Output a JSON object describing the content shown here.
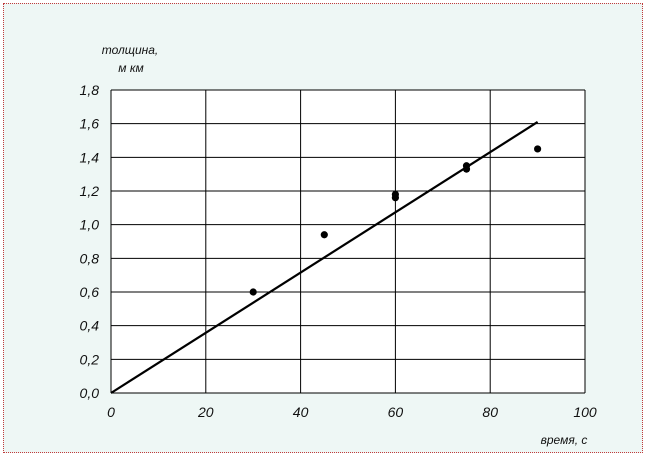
{
  "chart_data": {
    "type": "scatter",
    "title": "",
    "ylabel_line1": "толщина,",
    "ylabel_line2": "м км",
    "xlabel": "время, с",
    "xlim": [
      0,
      100
    ],
    "ylim": [
      0.0,
      1.8
    ],
    "x_ticks": [
      "0",
      "20",
      "40",
      "60",
      "80",
      "100"
    ],
    "y_ticks": [
      "0,0",
      "0,2",
      "0,4",
      "0,6",
      "0,8",
      "1,0",
      "1,2",
      "1,4",
      "1,6",
      "1,8"
    ],
    "x_tick_values": [
      0,
      20,
      40,
      60,
      80,
      100
    ],
    "y_tick_values": [
      0.0,
      0.2,
      0.4,
      0.6,
      0.8,
      1.0,
      1.2,
      1.4,
      1.6,
      1.8
    ],
    "grid": true,
    "points": [
      {
        "x": 30,
        "y": 0.6
      },
      {
        "x": 45,
        "y": 0.94
      },
      {
        "x": 60,
        "y": 1.16
      },
      {
        "x": 60,
        "y": 1.18
      },
      {
        "x": 75,
        "y": 1.33
      },
      {
        "x": 75,
        "y": 1.35
      },
      {
        "x": 90,
        "y": 1.45
      }
    ],
    "trendline": {
      "x": [
        0,
        90
      ],
      "y": [
        0.0,
        1.61
      ]
    },
    "colors": {
      "plot_area": "#ffffff",
      "background": "#eef7f5",
      "grid": "#000000",
      "marker": "#000000",
      "trendline": "#000000"
    }
  }
}
